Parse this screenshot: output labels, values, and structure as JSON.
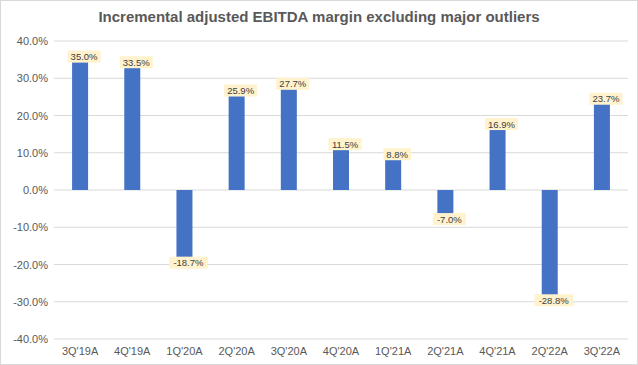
{
  "chart_data": {
    "type": "bar",
    "title": "Incremental adjusted EBITDA margin excluding major outliers",
    "categories": [
      "3Q'19A",
      "4Q'19A",
      "1Q'20A",
      "2Q'20A",
      "3Q'20A",
      "4Q'20A",
      "1Q'21A",
      "2Q'21A",
      "4Q'21A",
      "2Q'22A",
      "3Q'22A"
    ],
    "values": [
      35.0,
      33.5,
      -18.7,
      25.9,
      27.7,
      11.5,
      8.8,
      -7.0,
      16.9,
      -28.8,
      23.7
    ],
    "value_labels": [
      "35.0%",
      "33.5%",
      "-18.7%",
      "25.9%",
      "27.7%",
      "11.5%",
      "8.8%",
      "-7.0%",
      "16.9%",
      "-28.8%",
      "23.7%"
    ],
    "color": "#4472c4",
    "ylim": [
      -40,
      40
    ],
    "yticks": [
      {
        "value": -40,
        "label": "-40.0%"
      },
      {
        "value": -30,
        "label": "-30.0%"
      },
      {
        "value": -20,
        "label": "-20.0%"
      },
      {
        "value": -10,
        "label": "-10.0%"
      },
      {
        "value": 0,
        "label": "0.0%"
      },
      {
        "value": 10,
        "label": "10.0%"
      },
      {
        "value": 20,
        "label": "20.0%"
      },
      {
        "value": 30,
        "label": "30.0%"
      },
      {
        "value": 40,
        "label": "40.0%"
      }
    ],
    "grid": true,
    "data_labels": true
  }
}
